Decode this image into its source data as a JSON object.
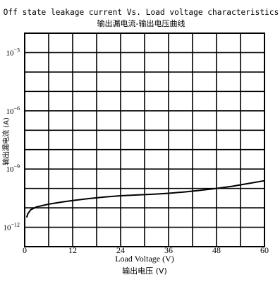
{
  "chart_data": {
    "type": "line",
    "title": "Off state leakage current Vs. Load voltage characteristics",
    "subtitle": "输出漏电流-输出电压曲线",
    "xlabel": "Load Voltage (V)",
    "xlabel_cn": "输出电压 (V)",
    "ylabel_cn": "输出漏电流 (A)",
    "xlim": [
      0,
      60
    ],
    "x_ticks": [
      0,
      12,
      24,
      36,
      48,
      60
    ],
    "x_tick_labels": [
      "0",
      "12",
      "24",
      "36",
      "48",
      "60"
    ],
    "y_scale": "log",
    "ylim": [
      1e-13,
      0.01
    ],
    "y_ticks": [
      0.001,
      1e-06,
      1e-09,
      1e-12
    ],
    "y_tick_labels": [
      {
        "base": "10",
        "exp": "−3"
      },
      {
        "base": "10",
        "exp": "−6"
      },
      {
        "base": "10",
        "exp": "−9"
      },
      {
        "base": "10",
        "exp": "−12"
      }
    ],
    "grid": true,
    "series": [
      {
        "color": "#000000",
        "points": [
          [
            0.5,
            3.2e-12
          ],
          [
            0.8,
            5e-12
          ],
          [
            1.5,
            8e-12
          ],
          [
            3,
            1.12e-11
          ],
          [
            6,
            1.55e-11
          ],
          [
            9,
            1.95e-11
          ],
          [
            12,
            2.4e-11
          ],
          [
            16,
            3e-11
          ],
          [
            20,
            3.6e-11
          ],
          [
            24,
            4.2e-11
          ],
          [
            28,
            4.6e-11
          ],
          [
            32,
            5e-11
          ],
          [
            36,
            5.6e-11
          ],
          [
            40,
            6.6e-11
          ],
          [
            44,
            8e-11
          ],
          [
            48,
            1e-10
          ],
          [
            52,
            1.3e-10
          ],
          [
            56,
            1.8e-10
          ],
          [
            60,
            2.5e-10
          ]
        ]
      }
    ]
  }
}
